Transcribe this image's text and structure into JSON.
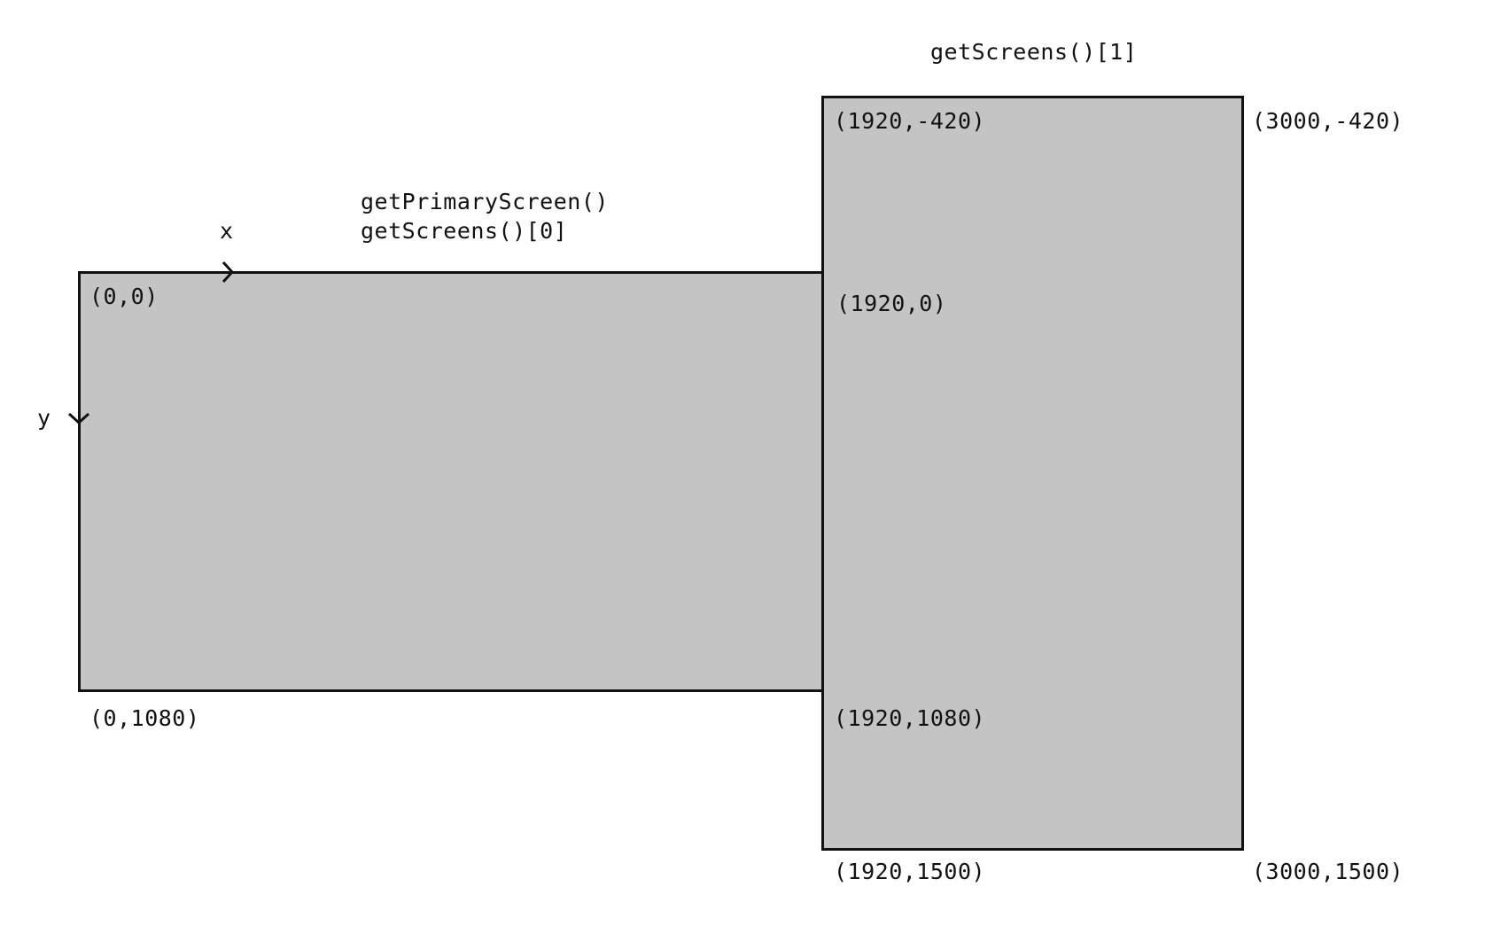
{
  "screens": [
    {
      "call_labels": [
        "getPrimaryScreen()",
        "getScreens()[0]"
      ],
      "corners": {
        "top_left": "(0,0)",
        "bottom_left": "(0,1080)"
      }
    },
    {
      "call_labels": [
        "getScreens()[1]"
      ],
      "corners": {
        "top_left": "(1920,-420)",
        "top_right": "(3000,-420)",
        "left_edge_mid": "(1920,0)",
        "left_edge_lower": "(1920,1080)",
        "bottom_left": "(1920,1500)",
        "bottom_right": "(3000,1500)"
      }
    }
  ],
  "axes": {
    "x_label": "x",
    "y_label": "y"
  },
  "colors": {
    "screen_fill": "#c4c4c4",
    "stroke": "#111111"
  }
}
